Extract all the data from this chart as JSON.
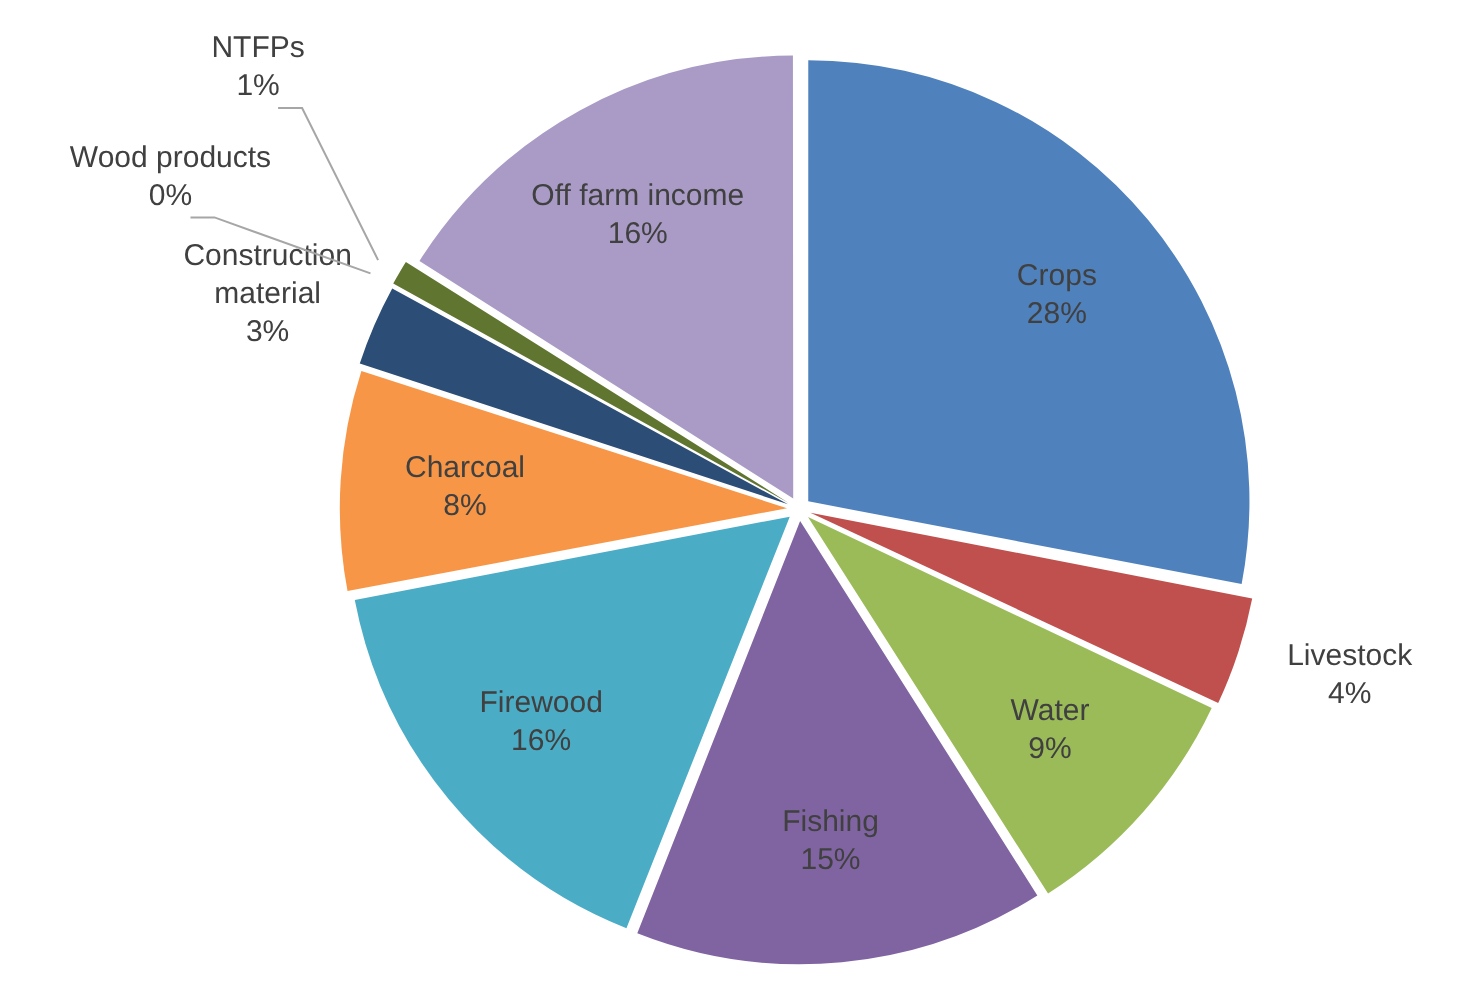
{
  "chart_data": {
    "type": "pie",
    "categories": [
      "Crops",
      "Livestock",
      "Water",
      "Fishing",
      "Firewood",
      "Charcoal",
      "Construction material",
      "Wood products",
      "NTFPs",
      "Off farm income"
    ],
    "values": [
      28,
      4,
      9,
      15,
      16,
      8,
      3,
      0,
      1,
      16
    ],
    "colors": [
      "#4f81bd",
      "#c0504d",
      "#9bbb59",
      "#8064a2",
      "#4bacc6",
      "#f79646",
      "#2c4d75",
      "#772c2a",
      "#5f7530",
      "#a99bc5"
    ],
    "value_labels": [
      "28%",
      "4%",
      "9%",
      "15%",
      "16%",
      "8%",
      "3%",
      "0%",
      "1%",
      "16%"
    ],
    "legend": false
  }
}
